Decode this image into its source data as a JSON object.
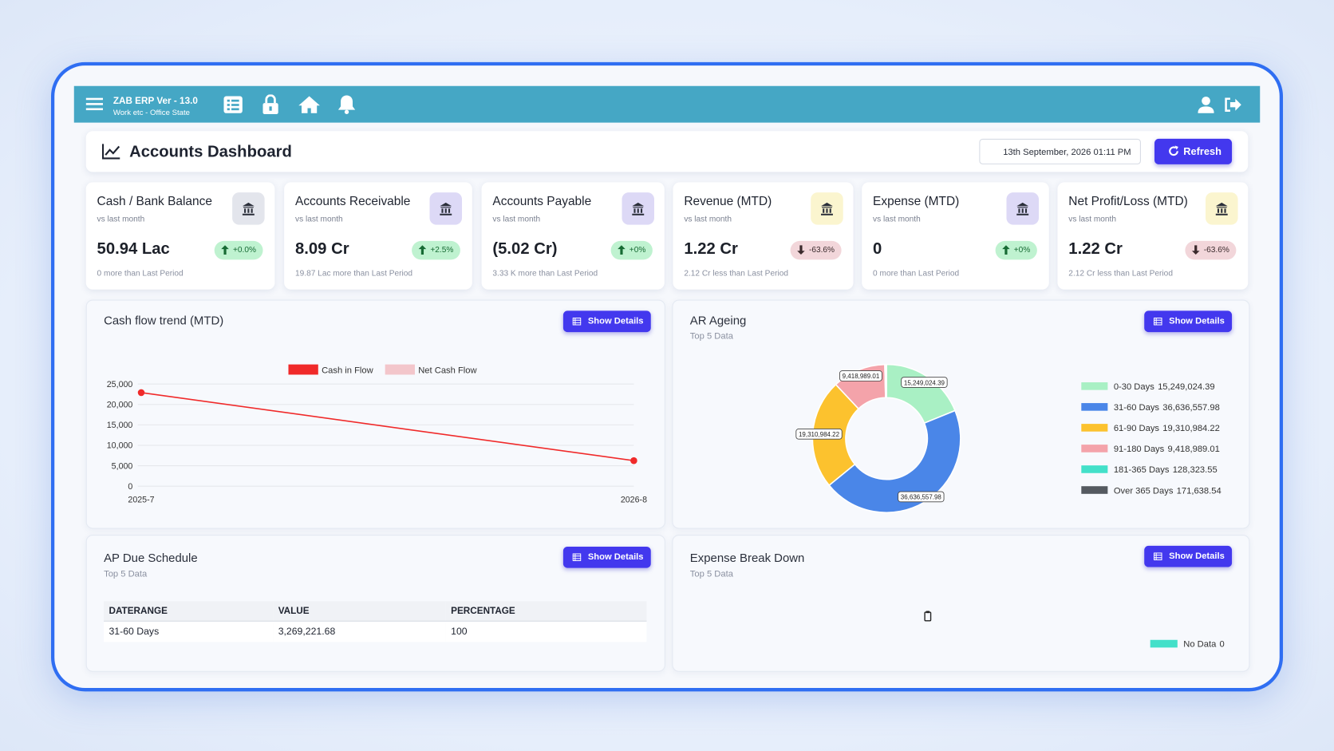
{
  "header": {
    "app_title": "ZAB ERP Ver - 13.0",
    "app_subtitle": "Work etc - Office State"
  },
  "toolbar": {
    "title": "Accounts Dashboard",
    "datetime": "13th September, 2026 01:11 PM",
    "refresh": "Refresh"
  },
  "kpis": [
    {
      "title": "Cash / Bank Balance",
      "caption": "vs last month",
      "value": "50.94 Lac",
      "change": "+0.0%",
      "trend": "up",
      "note": "0 more than Last Period",
      "icon_color": "#e3e5ec"
    },
    {
      "title": "Accounts Receivable",
      "caption": "vs last month",
      "value": "8.09 Cr",
      "change": "+2.5%",
      "trend": "up",
      "note": "19.87 Lac more than Last Period",
      "icon_color": "#ddd9f6"
    },
    {
      "title": "Accounts Payable",
      "caption": "vs last month",
      "value": "(5.02 Cr)",
      "change": "+0%",
      "trend": "up",
      "note": "3.33 K more than Last Period",
      "icon_color": "#ddd9f6"
    },
    {
      "title": "Revenue (MTD)",
      "caption": "vs last month",
      "value": "1.22 Cr",
      "change": "-63.6%",
      "trend": "down",
      "note": "2.12 Cr less than Last Period",
      "icon_color": "#fbf5cf"
    },
    {
      "title": "Expense (MTD)",
      "caption": "vs last month",
      "value": "0",
      "change": "+0%",
      "trend": "up",
      "note": "0 more than Last Period",
      "icon_color": "#ddd9f6"
    },
    {
      "title": "Net Profit/Loss (MTD)",
      "caption": "vs last month",
      "value": "1.22 Cr",
      "change": "-63.6%",
      "trend": "down",
      "note": "2.12 Cr less than Last Period",
      "icon_color": "#fbf5cf"
    }
  ],
  "chart_data": [
    {
      "type": "line",
      "title": "Cash flow trend (MTD)",
      "button": "Show Details",
      "categories": [
        "2025-7",
        "2026-8"
      ],
      "series": [
        {
          "name": "Cash in Flow",
          "color": "#f02a2a",
          "values": [
            22900,
            6250
          ]
        },
        {
          "name": "Net Cash Flow",
          "color": "#f3c6cb",
          "values": [
            null,
            null
          ]
        }
      ],
      "ylim": [
        0,
        25000
      ],
      "yticks": [
        0,
        {
          "value": 5000,
          "label": "5,000"
        },
        {
          "value": 10000,
          "label": "10,000"
        },
        {
          "value": 15000,
          "label": "15,000"
        },
        {
          "value": 20000,
          "label": "20,000"
        },
        {
          "value": 25000,
          "label": "25,000"
        }
      ],
      "grid": true
    },
    {
      "type": "donut",
      "title": "AR Ageing",
      "subtitle": "Top 5 Data",
      "button": "Show Details",
      "categories": [
        "0-30 Days",
        "31-60 Days",
        "61-90 Days",
        "91-180 Days",
        "181-365 Days",
        "Over 365 Days"
      ],
      "values": [
        15249024.39,
        36636557.98,
        19310984.22,
        9418989.01,
        128323.55,
        171638.54
      ],
      "value_labels": [
        "15,249,024.39",
        "36,636,557.98",
        "19,310,984.22",
        "9,418,989.01",
        "128,323.55",
        "171,638.54"
      ],
      "colors": [
        "#a9f0c4",
        "#4a86e8",
        "#fcc22e",
        "#f4a3aa",
        "#43e0c9",
        "#555a60"
      ]
    },
    {
      "type": "pie",
      "title": "Expense Break Down",
      "subtitle": "Top 5 Data",
      "button": "Show Details",
      "categories": [
        "No Data"
      ],
      "values": [
        0
      ],
      "colors": [
        "#43e0c9"
      ]
    }
  ],
  "ap_due": {
    "title": "AP Due Schedule",
    "subtitle": "Top 5 Data",
    "button": "Show Details",
    "columns": [
      "DATERANGE",
      "VALUE",
      "PERCENTAGE"
    ],
    "rows": [
      [
        "31-60 Days",
        "3,269,221.68",
        "100"
      ]
    ]
  }
}
